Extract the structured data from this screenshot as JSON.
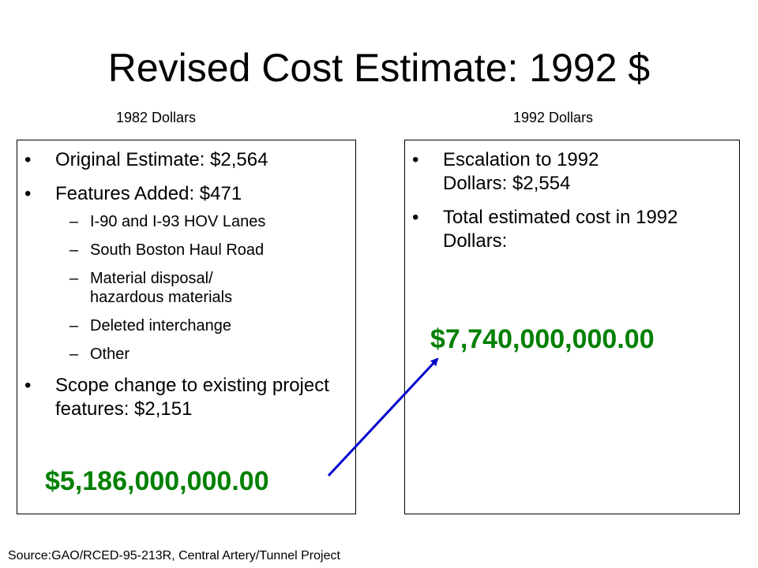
{
  "slide": {
    "title": "Revised Cost Estimate: 1992 $",
    "left_column_label": "1982 Dollars",
    "right_column_label": "1992 Dollars",
    "left_box": {
      "bullets": [
        "Original Estimate: $2,564",
        "Features Added: $471",
        "Scope change to existing project features: $2,151"
      ],
      "sub_items": [
        "I-90 and I-93 HOV Lanes",
        "South Boston Haul Road",
        "Material disposal/ hazardous materials",
        "Deleted interchange",
        "Other"
      ],
      "total": "$5,186,000,000.00"
    },
    "right_box": {
      "bullets": [
        "Escalation to 1992 Dollars: $2,554",
        "Total estimated cost in 1992 Dollars:"
      ],
      "total": "$7,740,000,000.00"
    },
    "source": "Source:GAO/RCED-95-213R, Central Artery/Tunnel Project",
    "colors": {
      "total_text": "#008000",
      "arrow": "#0000CC"
    },
    "icons": {
      "connector": "arrow-icon"
    }
  }
}
